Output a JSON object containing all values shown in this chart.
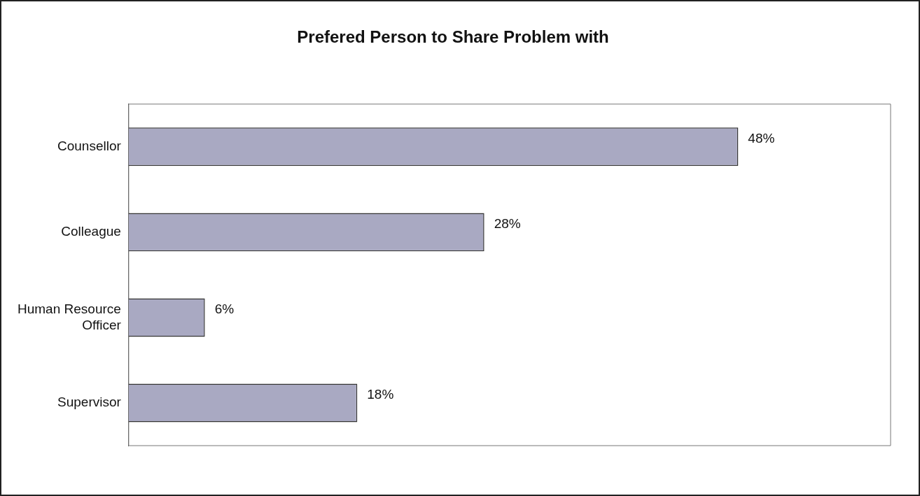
{
  "chart_data": {
    "type": "bar",
    "orientation": "horizontal",
    "title": "Prefered Person to Share Problem with",
    "categories": [
      "Counsellor",
      "Colleague",
      "Human Resource Officer",
      "Supervisor"
    ],
    "values": [
      48,
      28,
      6,
      18
    ],
    "value_labels": [
      "48%",
      "28%",
      "6%",
      "18%"
    ],
    "color": "#a9a9c2",
    "grid": false,
    "legend": false,
    "tick_labels": "y"
  }
}
